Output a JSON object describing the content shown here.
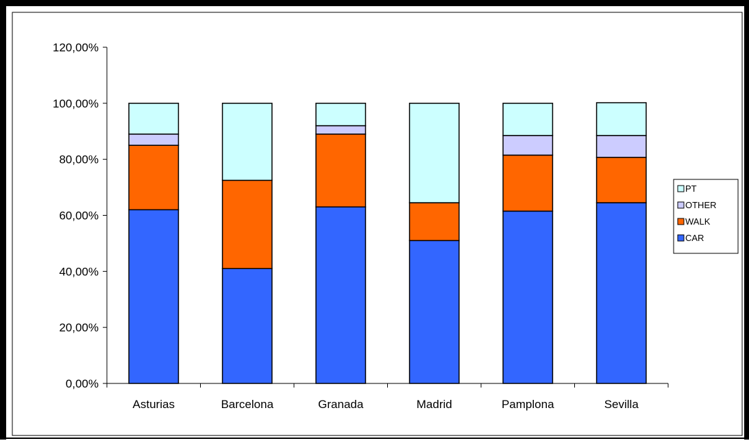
{
  "chart_data": {
    "type": "bar",
    "stacked": true,
    "categories": [
      "Asturias",
      "Barcelona",
      "Granada",
      "Madrid",
      "Pamplona",
      "Sevilla"
    ],
    "series": [
      {
        "name": "CAR",
        "color": "#3366ff",
        "values": [
          0.62,
          0.41,
          0.63,
          0.51,
          0.615,
          0.645
        ]
      },
      {
        "name": "WALK",
        "color": "#ff6600",
        "values": [
          0.23,
          0.315,
          0.26,
          0.135,
          0.2,
          0.162
        ]
      },
      {
        "name": "OTHER",
        "color": "#ccccff",
        "values": [
          0.04,
          0.0,
          0.03,
          0.0,
          0.07,
          0.078
        ]
      },
      {
        "name": "PT",
        "color": "#ccffff",
        "values": [
          0.11,
          0.275,
          0.08,
          0.355,
          0.115,
          0.117
        ]
      }
    ],
    "yticks": [
      "0,00%",
      "20,00%",
      "40,00%",
      "60,00%",
      "80,00%",
      "100,00%",
      "120,00%"
    ],
    "ylim": [
      0,
      1.2
    ],
    "legend": {
      "position": "right",
      "order": [
        "PT",
        "OTHER",
        "WALK",
        "CAR"
      ]
    },
    "grid": false
  }
}
